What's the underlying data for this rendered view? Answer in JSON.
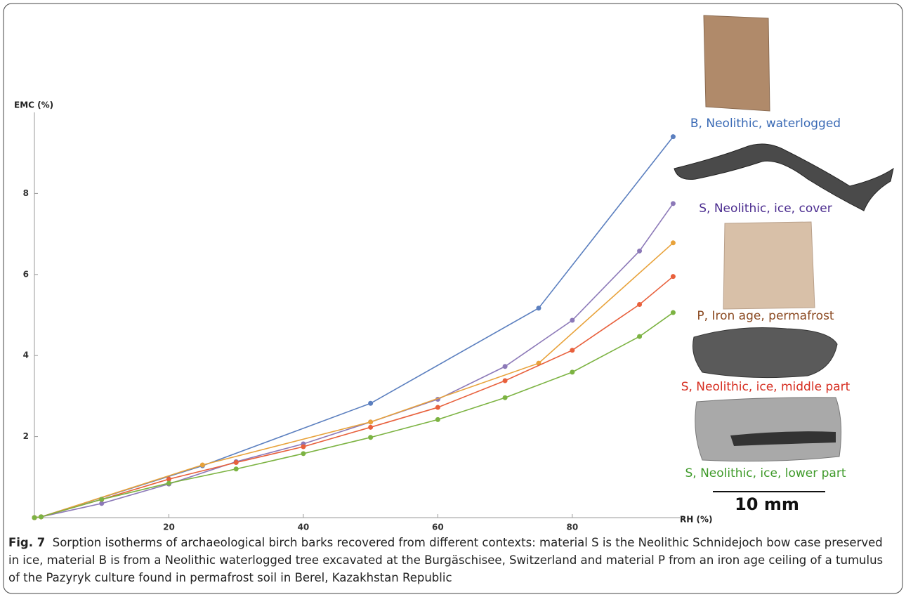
{
  "chart_data": {
    "type": "line",
    "xlabel": "RH (%)",
    "ylabel": "EMC (%)",
    "xlim": [
      0,
      96
    ],
    "ylim": [
      0,
      10
    ],
    "xticks": [
      20,
      40,
      60,
      80
    ],
    "yticks": [
      2,
      4,
      6,
      8
    ],
    "series": [
      {
        "name": "B, Neolithic, waterlogged",
        "color": "#5b7fbf",
        "label_color": "#3a6ab5",
        "x": [
          0,
          1,
          25,
          50,
          75,
          95
        ],
        "values": [
          0,
          0.02,
          1.28,
          2.82,
          5.17,
          9.4
        ]
      },
      {
        "name": "S, Neolithic, ice, cover",
        "color": "#8c79b8",
        "label_color": "#4b2c8f",
        "x": [
          0,
          1,
          10,
          20,
          30,
          40,
          50,
          60,
          70,
          80,
          90,
          95
        ],
        "values": [
          0,
          0.02,
          0.35,
          0.83,
          1.38,
          1.82,
          2.36,
          2.92,
          3.73,
          4.87,
          6.58,
          7.75
        ]
      },
      {
        "name": "P, Iron age, permafrost",
        "color": "#e8a23a",
        "label_color": "#8b4a22",
        "x": [
          0,
          1,
          25,
          50,
          75,
          95
        ],
        "values": [
          0,
          0.02,
          1.3,
          2.36,
          3.81,
          6.78
        ]
      },
      {
        "name": "S, Neolithic, ice, middle part",
        "color": "#e8603c",
        "label_color": "#d62d20",
        "x": [
          0,
          1,
          10,
          20,
          30,
          40,
          50,
          60,
          70,
          80,
          90,
          95
        ],
        "values": [
          0,
          0.02,
          0.45,
          0.95,
          1.36,
          1.75,
          2.23,
          2.72,
          3.38,
          4.13,
          5.26,
          5.95
        ]
      },
      {
        "name": "S, Neolithic, ice, lower part",
        "color": "#7cb342",
        "label_color": "#3f9a2a",
        "x": [
          0,
          1,
          10,
          20,
          30,
          40,
          50,
          60,
          70,
          80,
          90,
          95
        ],
        "values": [
          0,
          0.02,
          0.45,
          0.85,
          1.2,
          1.58,
          1.98,
          2.42,
          2.96,
          3.59,
          4.47,
          5.06
        ]
      }
    ],
    "scale_bar": "10 mm",
    "caption_label": "Fig. 7",
    "caption": "Sorption isotherms of archaeological birch barks recovered from different contexts: material S is the Neolithic Schnidejoch bow case preserved in ice, material B is from a Neolithic waterlogged tree excavated at the Burgäschisee, Switzerland and material P from an iron age ceiling of a tumulus of the Pazyryk culture found in permafrost soil in Berel, Kazakhstan Republic"
  }
}
